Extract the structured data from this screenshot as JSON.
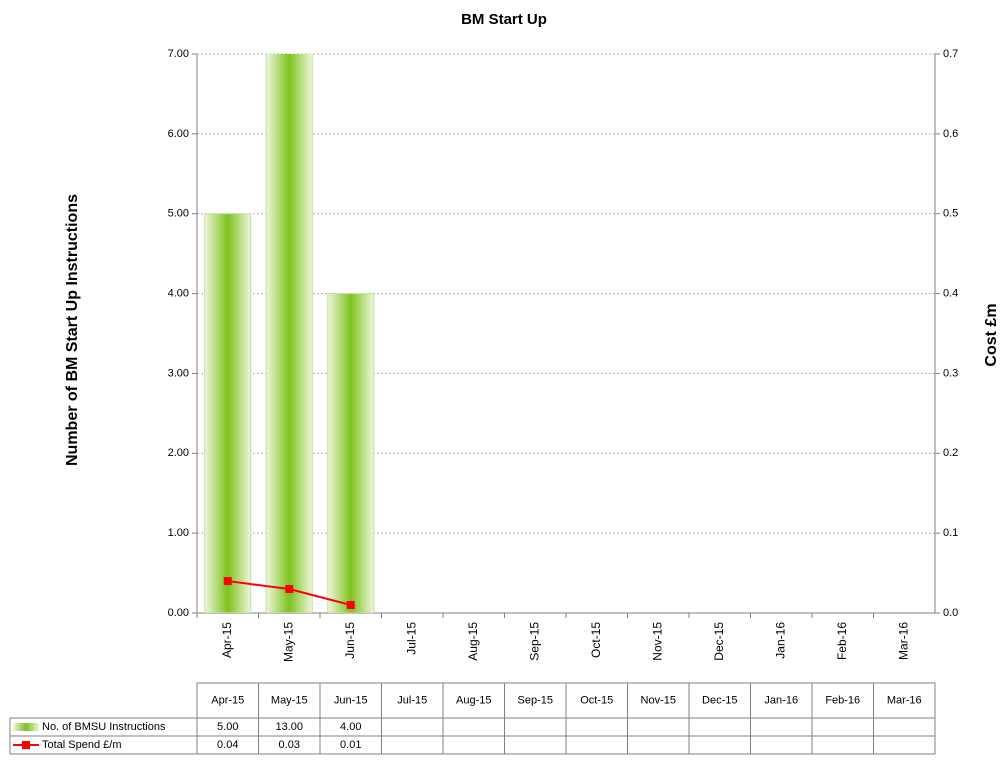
{
  "chart_data": {
    "type": "bar-line",
    "title": "BM Start Up",
    "y_label": "Number of BM Start Up Instructions",
    "y2_label": "Cost £m",
    "categories": [
      "Apr-15",
      "May-15",
      "Jun-15",
      "Jul-15",
      "Aug-15",
      "Sep-15",
      "Oct-15",
      "Nov-15",
      "Dec-15",
      "Jan-16",
      "Feb-16",
      "Mar-16"
    ],
    "series": [
      {
        "name": "No. of BMSU Instructions",
        "type": "bar",
        "color": "#7dc21e",
        "values": [
          5,
          13,
          4,
          null,
          null,
          null,
          null,
          null,
          null,
          null,
          null,
          null
        ],
        "value_labels": [
          "5.00",
          "13.00",
          "4.00",
          null,
          null,
          null,
          null,
          null,
          null,
          null,
          null,
          null
        ]
      },
      {
        "name": "Total Spend £/m",
        "type": "line",
        "axis": "y2",
        "color": "#ff0000",
        "values": [
          0.04,
          0.03,
          0.01,
          null,
          null,
          null,
          null,
          null,
          null,
          null,
          null,
          null
        ],
        "value_labels": [
          "0.04",
          "0.03",
          "0.01",
          null,
          null,
          null,
          null,
          null,
          null,
          null,
          null,
          null
        ]
      }
    ],
    "ylim": [
      0,
      7
    ],
    "yticks": [
      {
        "value": 0,
        "label": "0.00"
      },
      {
        "value": 1,
        "label": "1.00"
      },
      {
        "value": 2,
        "label": "2.00"
      },
      {
        "value": 3,
        "label": "3.00"
      },
      {
        "value": 4,
        "label": "4.00"
      },
      {
        "value": 5,
        "label": "5.00"
      },
      {
        "value": 6,
        "label": "6.00"
      },
      {
        "value": 7,
        "label": "7.00"
      }
    ],
    "y2lim": [
      0,
      0.7
    ],
    "y2ticks": [
      {
        "value": 0,
        "label": "0.0"
      },
      0.1,
      0.2,
      0.3,
      0.4,
      0.5,
      0.6,
      0.7
    ],
    "grid": true
  }
}
